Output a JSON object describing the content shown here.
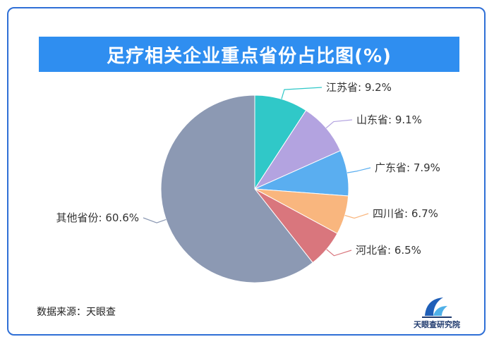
{
  "chart_data": {
    "type": "pie",
    "title": "足疗相关企业重点省份占比图(%)",
    "categories": [
      "江苏省",
      "山东省",
      "广东省",
      "四川省",
      "河北省",
      "其他省份"
    ],
    "values": [
      9.2,
      9.1,
      7.9,
      6.7,
      6.5,
      60.6
    ],
    "labels": [
      "江苏省: 9.2%",
      "山东省: 9.1%",
      "广东省: 7.9%",
      "四川省: 6.7%",
      "河北省: 6.5%",
      "其他省份: 60.6%"
    ],
    "colors": [
      "#30c8c8",
      "#b3a3e0",
      "#5aaef0",
      "#f9b67e",
      "#d9767d",
      "#8c99b3"
    ]
  },
  "source_text": "数据来源：天眼查",
  "logo_text": "天眼查研究院"
}
